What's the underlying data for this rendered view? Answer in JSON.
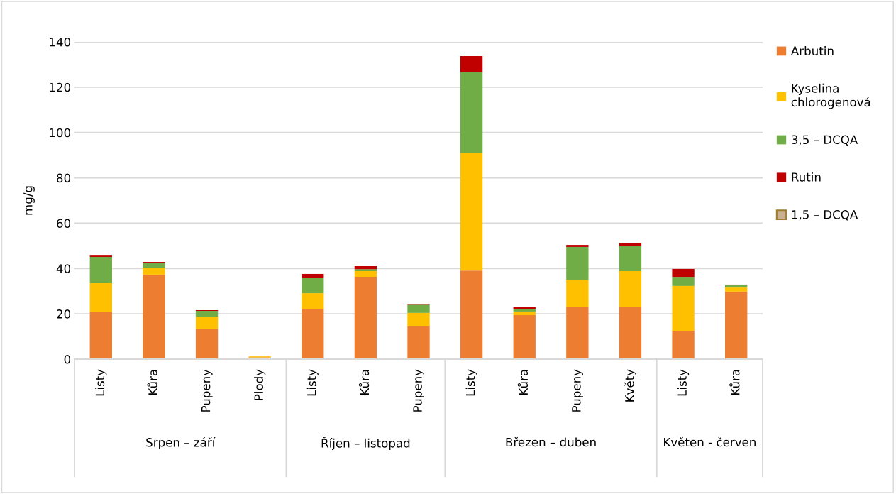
{
  "chart_data": {
    "type": "bar",
    "stacked": true,
    "ylabel": "mg/g",
    "categories": [
      "Listy",
      "Kůra",
      "Pupeny",
      "Plody",
      "Listy",
      "Kůra",
      "Pupeny",
      "Listy",
      "Kůra",
      "Pupeny",
      "Květy",
      "Listy",
      "Kůra"
    ],
    "annotations": [
      "Srpen – září",
      "Říjen – listopad",
      "Březen – duben",
      "Květen - červen"
    ],
    "series": [
      {
        "name": "Arbutin",
        "color": "#ed7d31",
        "values": [
          20.7,
          37.3,
          13.2,
          0.8,
          22.2,
          36.3,
          14.4,
          39.1,
          19.4,
          23.2,
          23.2,
          12.5,
          29.8
        ]
      },
      {
        "name": "Kyselina chlorogenová",
        "color": "#ffc000",
        "values": [
          12.8,
          3.1,
          5.6,
          0.4,
          6.9,
          2.5,
          6.0,
          51.7,
          1.6,
          11.9,
          15.6,
          19.8,
          1.8
        ]
      },
      {
        "name": "3,5 – DCQA",
        "color": "#70ad47",
        "values": [
          11.6,
          2.2,
          2.5,
          0,
          6.6,
          0.9,
          3.6,
          35.7,
          1.2,
          14.4,
          11.0,
          4.0,
          1.0
        ]
      },
      {
        "name": "Rutin",
        "color": "#c00000",
        "values": [
          0.9,
          0.3,
          0.3,
          0,
          1.9,
          1.3,
          0.4,
          7.2,
          0.7,
          0.9,
          1.6,
          3.5,
          0.3
        ]
      },
      {
        "name": "1,5 – DCQA",
        "color": "#c9b18f",
        "values": [
          0,
          0,
          0,
          0,
          0,
          0,
          0,
          0,
          0,
          0,
          0,
          0,
          0
        ]
      }
    ],
    "ylim": [
      0,
      140
    ],
    "yticks": [
      0,
      20,
      40,
      60,
      80,
      100,
      120,
      140
    ],
    "grid": "y",
    "legend": "right"
  }
}
